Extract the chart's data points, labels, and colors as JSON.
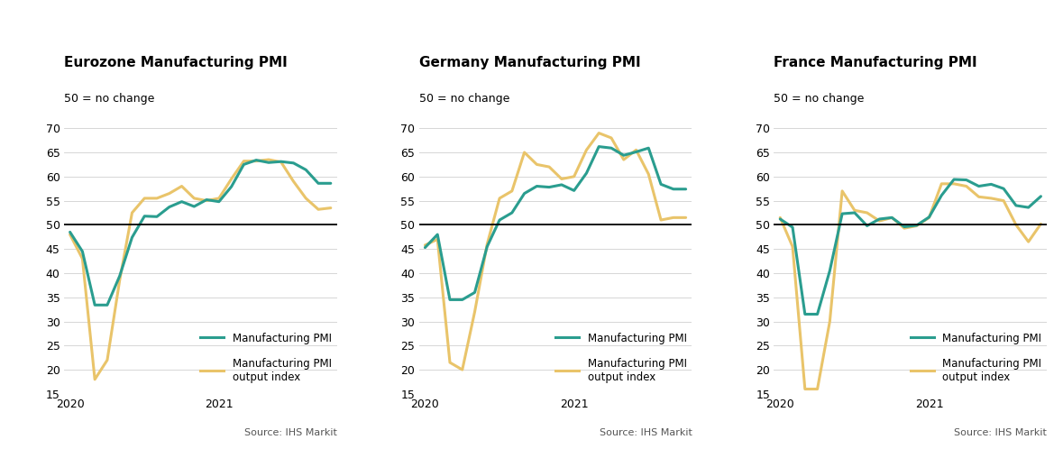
{
  "charts": [
    {
      "title": "Eurozone Manufacturing PMI",
      "subtitle": "50 = no change",
      "pmi": [
        48.5,
        44.5,
        33.4,
        33.4,
        39.4,
        47.4,
        51.8,
        51.7,
        53.7,
        54.8,
        53.8,
        55.2,
        54.8,
        57.9,
        62.5,
        63.4,
        62.9,
        63.1,
        62.8,
        61.4,
        58.6,
        58.6
      ],
      "output": [
        48.0,
        43.0,
        18.0,
        22.0,
        38.5,
        52.5,
        55.5,
        55.5,
        56.5,
        58.0,
        55.5,
        55.0,
        55.5,
        59.5,
        63.2,
        63.2,
        63.5,
        63.0,
        59.0,
        55.5,
        53.2,
        53.5
      ]
    },
    {
      "title": "Germany Manufacturing PMI",
      "subtitle": "50 = no change",
      "pmi": [
        45.3,
        48.0,
        34.5,
        34.5,
        36.0,
        45.5,
        51.0,
        52.5,
        56.5,
        58.0,
        57.8,
        58.3,
        57.1,
        60.7,
        66.2,
        65.9,
        64.4,
        65.1,
        65.9,
        58.4,
        57.4,
        57.4
      ],
      "output": [
        45.8,
        47.0,
        21.5,
        20.0,
        32.0,
        46.0,
        55.5,
        57.0,
        65.0,
        62.5,
        62.0,
        59.5,
        60.0,
        65.5,
        69.0,
        68.0,
        63.5,
        65.5,
        60.5,
        51.0,
        51.5,
        51.5
      ]
    },
    {
      "title": "France Manufacturing PMI",
      "subtitle": "50 = no change",
      "pmi": [
        51.2,
        49.5,
        31.5,
        31.5,
        40.5,
        52.3,
        52.5,
        49.8,
        51.2,
        51.5,
        49.6,
        49.9,
        51.6,
        56.1,
        59.4,
        59.3,
        58.0,
        58.4,
        57.5,
        54.0,
        53.6,
        55.9
      ],
      "output": [
        51.5,
        45.5,
        16.0,
        16.0,
        30.0,
        57.0,
        53.0,
        52.5,
        50.8,
        51.5,
        49.3,
        49.8,
        51.5,
        58.5,
        58.5,
        58.0,
        55.8,
        55.5,
        55.0,
        50.0,
        46.5,
        50.2
      ]
    }
  ],
  "ylim": [
    15,
    70
  ],
  "yticks": [
    15,
    20,
    25,
    30,
    35,
    40,
    45,
    50,
    55,
    60,
    65,
    70
  ],
  "hline_y": 50,
  "color_pmi": "#2a9d8f",
  "color_output": "#e9c46a",
  "line_width": 2.2,
  "source_text": "Source: IHS Markit",
  "legend_label_pmi": "Manufacturing PMI",
  "legend_label_output": "Manufacturing PMI\noutput index",
  "bg_color": "#ffffff",
  "grid_color": "#d0d0d0",
  "title_fontsize": 11,
  "subtitle_fontsize": 9,
  "tick_fontsize": 9,
  "legend_fontsize": 8.5,
  "source_fontsize": 8
}
